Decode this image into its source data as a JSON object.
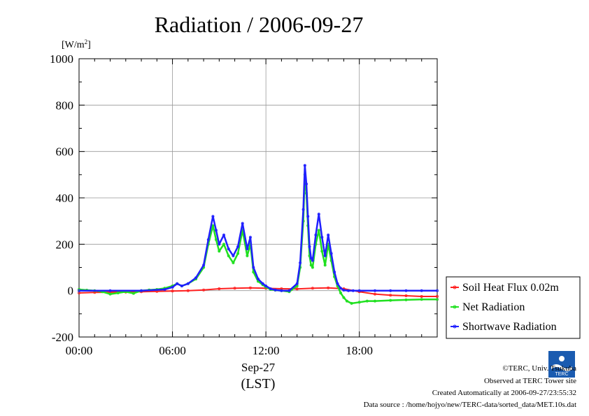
{
  "chart_data": {
    "type": "line",
    "title": "Radiation / 2006-09-27",
    "ylabel_unit": "[W/m",
    "ylabel_unit_sup": "2",
    "ylabel_unit_end": "]",
    "ylim": [
      -200,
      1000
    ],
    "yticks": [
      "1000",
      "800",
      "600",
      "400",
      "200",
      "0",
      "-200"
    ],
    "ytick_values": [
      1000,
      800,
      600,
      400,
      200,
      0,
      -200
    ],
    "xlim": [
      0,
      23.0
    ],
    "xticks": [
      "00:00",
      "06:00",
      "12:00",
      "18:00"
    ],
    "xtick_values": [
      0,
      6,
      12,
      18
    ],
    "xdate_label": "Sep-27",
    "xlabel": "(LST)",
    "grid": true,
    "legend_position": "right",
    "series": [
      {
        "name": "Soil Heat Flux 0.02m",
        "color": "#ff2020",
        "x": [
          0,
          1,
          2,
          3,
          4,
          5,
          6,
          7,
          8,
          9,
          10,
          11,
          12,
          13,
          14,
          15,
          16,
          17,
          18,
          19,
          20,
          21,
          22,
          23
        ],
        "y": [
          -10,
          -8,
          -7,
          -6,
          -5,
          -3,
          -2,
          0,
          3,
          8,
          10,
          12,
          10,
          8,
          7,
          10,
          12,
          8,
          -5,
          -15,
          -20,
          -22,
          -25,
          -25
        ]
      },
      {
        "name": "Net Radiation",
        "color": "#20e020",
        "x": [
          0,
          0.5,
          1,
          1.5,
          2,
          2.5,
          3,
          3.5,
          4,
          4.5,
          5,
          5.5,
          6,
          6.3,
          6.6,
          7,
          7.5,
          8,
          8.3,
          8.6,
          8.8,
          9,
          9.3,
          9.6,
          9.9,
          10.2,
          10.5,
          10.8,
          11,
          11.2,
          11.5,
          11.8,
          12,
          12.3,
          12.6,
          13,
          13.5,
          14,
          14.2,
          14.4,
          14.5,
          14.6,
          14.7,
          14.8,
          14.9,
          15,
          15.2,
          15.4,
          15.6,
          15.8,
          16,
          16.2,
          16.4,
          16.6,
          16.8,
          17,
          17.2,
          17.5,
          18,
          18.5,
          19,
          20,
          21,
          22,
          23
        ],
        "y": [
          5,
          2,
          0,
          -5,
          -15,
          -10,
          -5,
          -12,
          0,
          3,
          5,
          10,
          20,
          30,
          20,
          30,
          50,
          100,
          200,
          280,
          220,
          170,
          200,
          150,
          120,
          160,
          260,
          150,
          200,
          80,
          40,
          25,
          15,
          5,
          2,
          0,
          -5,
          20,
          100,
          300,
          500,
          420,
          280,
          150,
          110,
          100,
          200,
          260,
          170,
          110,
          200,
          130,
          60,
          20,
          -10,
          -30,
          -45,
          -55,
          -50,
          -45,
          -45,
          -42,
          -40,
          -38,
          -38
        ]
      },
      {
        "name": "Shortwave Radiation",
        "color": "#2020ff",
        "x": [
          0,
          2,
          4,
          5.5,
          6,
          6.3,
          6.6,
          7,
          7.5,
          8,
          8.3,
          8.6,
          8.8,
          9,
          9.3,
          9.6,
          9.9,
          10.2,
          10.5,
          10.8,
          11,
          11.2,
          11.5,
          11.8,
          12,
          12.3,
          12.6,
          13,
          13.5,
          14,
          14.2,
          14.4,
          14.5,
          14.6,
          14.7,
          14.8,
          14.9,
          15,
          15.2,
          15.4,
          15.6,
          15.8,
          16,
          16.2,
          16.4,
          16.6,
          16.8,
          17,
          17.3,
          17.6,
          18,
          19,
          20,
          21,
          22,
          23
        ],
        "y": [
          0,
          0,
          0,
          5,
          15,
          30,
          20,
          30,
          55,
          110,
          220,
          320,
          260,
          200,
          240,
          180,
          150,
          190,
          290,
          180,
          230,
          100,
          50,
          30,
          20,
          8,
          3,
          0,
          0,
          30,
          120,
          350,
          540,
          460,
          320,
          190,
          140,
          130,
          240,
          330,
          230,
          150,
          240,
          160,
          80,
          30,
          10,
          2,
          0,
          0,
          0,
          0,
          0,
          0,
          0,
          0
        ]
      }
    ]
  },
  "credits": {
    "copyright": "©TERC, Univ. Tsukuba",
    "observed": "Observed at TERC Tower site",
    "created": "Created Automatically at 2006-09-27/23:55:32",
    "source": "Data source : /home/hojyo/new/TERC-data/sorted_data/MET.10s.dat",
    "logo_text": "TERC"
  }
}
